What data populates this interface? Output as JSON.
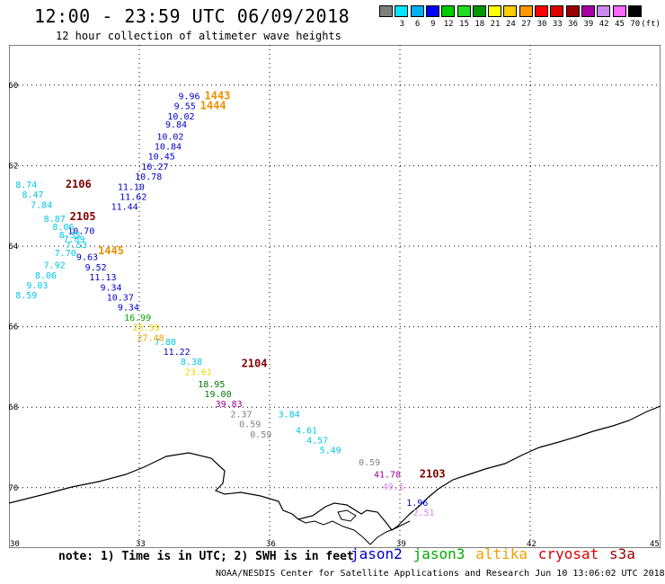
{
  "header": {
    "title": "12:00 - 23:59 UTC 06/09/2018",
    "subtitle": "12 hour collection of altimeter wave heights"
  },
  "legend": {
    "unit": "(ft)",
    "bins": [
      {
        "label": "",
        "color": "#808080"
      },
      {
        "label": "3",
        "color": "#00e5ff"
      },
      {
        "label": "6",
        "color": "#00b0f0"
      },
      {
        "label": "9",
        "color": "#0000ff"
      },
      {
        "label": "12",
        "color": "#00cc00"
      },
      {
        "label": "15",
        "color": "#22dd22"
      },
      {
        "label": "18",
        "color": "#009900"
      },
      {
        "label": "21",
        "color": "#ffff00"
      },
      {
        "label": "24",
        "color": "#ffcc00"
      },
      {
        "label": "27",
        "color": "#ff9900"
      },
      {
        "label": "30",
        "color": "#ff0000"
      },
      {
        "label": "33",
        "color": "#dd0000"
      },
      {
        "label": "36",
        "color": "#990000"
      },
      {
        "label": "39",
        "color": "#aa00aa"
      },
      {
        "label": "42",
        "color": "#cc88ee"
      },
      {
        "label": "45",
        "color": "#ff66ff"
      },
      {
        "label": "70",
        "color": "#000000"
      }
    ]
  },
  "axes": {
    "lat_labels": [
      "-60",
      "-62",
      "-64",
      "-66",
      "-68",
      "-70"
    ],
    "lon_labels": [
      "30",
      "33",
      "36",
      "39",
      "42",
      "45"
    ]
  },
  "colors": {
    "gray": "#808080",
    "cyan": "#00c8e8",
    "blue": "#0000cc",
    "green": "#00aa00",
    "darkgreen": "#007700",
    "yellow": "#e8d800",
    "orange": "#f0a000",
    "purple": "#990099",
    "violet": "#e080f0",
    "maroon": "#800000",
    "gold": "#e89000"
  },
  "observations": [
    {
      "lon": 33.9,
      "lat": -60.35,
      "text": "9.96",
      "c": "blue"
    },
    {
      "lon": 33.8,
      "lat": -60.6,
      "text": "9.55",
      "c": "blue"
    },
    {
      "lon": 33.65,
      "lat": -60.85,
      "text": "10.02",
      "c": "blue"
    },
    {
      "lon": 33.6,
      "lat": -61.05,
      "text": "9.84",
      "c": "blue"
    },
    {
      "lon": 33.4,
      "lat": -61.35,
      "text": "10.02",
      "c": "blue"
    },
    {
      "lon": 33.35,
      "lat": -61.6,
      "text": "10.84",
      "c": "blue"
    },
    {
      "lon": 33.2,
      "lat": -61.85,
      "text": "10.45",
      "c": "blue"
    },
    {
      "lon": 33.05,
      "lat": -62.1,
      "text": "10.27",
      "c": "blue"
    },
    {
      "lon": 32.9,
      "lat": -62.35,
      "text": "10.78",
      "c": "blue"
    },
    {
      "lon": 32.5,
      "lat": -62.6,
      "text": "11.10",
      "c": "blue"
    },
    {
      "lon": 32.55,
      "lat": -62.85,
      "text": "11.62",
      "c": "blue"
    },
    {
      "lon": 32.35,
      "lat": -63.1,
      "text": "11.44",
      "c": "blue"
    },
    {
      "lon": 31.35,
      "lat": -63.7,
      "text": "10.70",
      "c": "blue"
    },
    {
      "lon": 31.55,
      "lat": -64.35,
      "text": "9.63",
      "c": "blue"
    },
    {
      "lon": 31.75,
      "lat": -64.6,
      "text": "9.52",
      "c": "blue"
    },
    {
      "lon": 31.85,
      "lat": -64.85,
      "text": "11.13",
      "c": "blue"
    },
    {
      "lon": 32.1,
      "lat": -65.1,
      "text": "9.34",
      "c": "blue"
    },
    {
      "lon": 32.25,
      "lat": -65.35,
      "text": "10.37",
      "c": "blue"
    },
    {
      "lon": 32.5,
      "lat": -65.6,
      "text": "9.34",
      "c": "blue"
    },
    {
      "lon": 33.55,
      "lat": -66.7,
      "text": "11.22",
      "c": "blue"
    },
    {
      "lon": 30.15,
      "lat": -62.55,
      "text": "8.74",
      "c": "cyan"
    },
    {
      "lon": 30.3,
      "lat": -62.8,
      "text": "8.47",
      "c": "cyan"
    },
    {
      "lon": 30.5,
      "lat": -63.05,
      "text": "7.84",
      "c": "cyan"
    },
    {
      "lon": 30.8,
      "lat": -63.4,
      "text": "8.87",
      "c": "cyan"
    },
    {
      "lon": 31.0,
      "lat": -63.6,
      "text": "8.06",
      "c": "cyan"
    },
    {
      "lon": 31.15,
      "lat": -63.8,
      "text": "8.35",
      "c": "cyan"
    },
    {
      "lon": 31.25,
      "lat": -63.9,
      "text": "7.69",
      "c": "cyan"
    },
    {
      "lon": 31.3,
      "lat": -64.05,
      "text": "7.53",
      "c": "cyan"
    },
    {
      "lon": 31.05,
      "lat": -64.25,
      "text": "7.70",
      "c": "cyan"
    },
    {
      "lon": 30.8,
      "lat": -64.55,
      "text": "7.92",
      "c": "cyan"
    },
    {
      "lon": 30.6,
      "lat": -64.8,
      "text": "8.06",
      "c": "cyan"
    },
    {
      "lon": 30.4,
      "lat": -65.05,
      "text": "9.03",
      "c": "cyan"
    },
    {
      "lon": 30.15,
      "lat": -65.3,
      "text": "8.59",
      "c": "cyan"
    },
    {
      "lon": 33.35,
      "lat": -66.45,
      "text": "7.80",
      "c": "cyan"
    },
    {
      "lon": 33.95,
      "lat": -66.95,
      "text": "8.38",
      "c": "cyan"
    },
    {
      "lon": 36.2,
      "lat": -68.25,
      "text": "3.84",
      "c": "cyan"
    },
    {
      "lon": 36.6,
      "lat": -68.65,
      "text": "4.61",
      "c": "cyan"
    },
    {
      "lon": 36.85,
      "lat": -68.9,
      "text": "4.57",
      "c": "cyan"
    },
    {
      "lon": 37.15,
      "lat": -69.15,
      "text": "5.49",
      "c": "cyan"
    },
    {
      "lon": 32.65,
      "lat": -65.85,
      "text": "16.99",
      "c": "green"
    },
    {
      "lon": 34.35,
      "lat": -67.5,
      "text": "18.95",
      "c": "darkgreen"
    },
    {
      "lon": 34.5,
      "lat": -67.75,
      "text": "19.00",
      "c": "darkgreen"
    },
    {
      "lon": 32.85,
      "lat": -66.1,
      "text": "23.59",
      "c": "yellow"
    },
    {
      "lon": 34.05,
      "lat": -67.2,
      "text": "23.61",
      "c": "yellow"
    },
    {
      "lon": 32.95,
      "lat": -66.35,
      "text": "27.48",
      "c": "orange"
    },
    {
      "lon": 34.75,
      "lat": -68.0,
      "text": "39.83",
      "c": "purple"
    },
    {
      "lon": 38.4,
      "lat": -69.75,
      "text": "41.78",
      "c": "purple"
    },
    {
      "lon": 35.1,
      "lat": -68.25,
      "text": "2.37",
      "c": "gray"
    },
    {
      "lon": 35.3,
      "lat": -68.5,
      "text": "0.59",
      "c": "gray"
    },
    {
      "lon": 35.55,
      "lat": -68.75,
      "text": "0.59",
      "c": "gray"
    },
    {
      "lon": 38.05,
      "lat": -69.45,
      "text": "0.59",
      "c": "gray"
    },
    {
      "lon": 38.6,
      "lat": -70.05,
      "text": "49.1",
      "c": "violet"
    },
    {
      "lon": 39.15,
      "lat": -70.45,
      "text": "1.96",
      "c": "blue"
    },
    {
      "lon": 39.3,
      "lat": -70.7,
      "text": "2.51",
      "c": "violet"
    }
  ],
  "pass_labels": [
    {
      "lon": 31.3,
      "lat": -62.55,
      "text": "2106",
      "c": "maroon"
    },
    {
      "lon": 31.4,
      "lat": -63.35,
      "text": "2105",
      "c": "maroon"
    },
    {
      "lon": 35.35,
      "lat": -67.0,
      "text": "2104",
      "c": "maroon"
    },
    {
      "lon": 39.45,
      "lat": -69.75,
      "text": "2103",
      "c": "maroon"
    },
    {
      "lon": 34.5,
      "lat": -60.35,
      "text": "1443",
      "c": "gold"
    },
    {
      "lon": 34.4,
      "lat": -60.6,
      "text": "1444",
      "c": "gold"
    },
    {
      "lon": 32.05,
      "lat": -64.2,
      "text": "1445",
      "c": "gold"
    }
  ],
  "footer": {
    "note": "note: 1) Time is in UTC; 2) SWH is in feet",
    "satellites": [
      {
        "name": "jason2",
        "color": "#0000cc"
      },
      {
        "name": "jason3",
        "color": "#00aa00"
      },
      {
        "name": "altika",
        "color": "#f0a000"
      },
      {
        "name": "cryosat",
        "color": "#dd0000"
      },
      {
        "name": "s3a",
        "color": "#990000"
      }
    ],
    "credit": "NOAA/NESDIS Center for Satellite Applications and Research   Jun 10 13:06:02 UTC 2018"
  }
}
